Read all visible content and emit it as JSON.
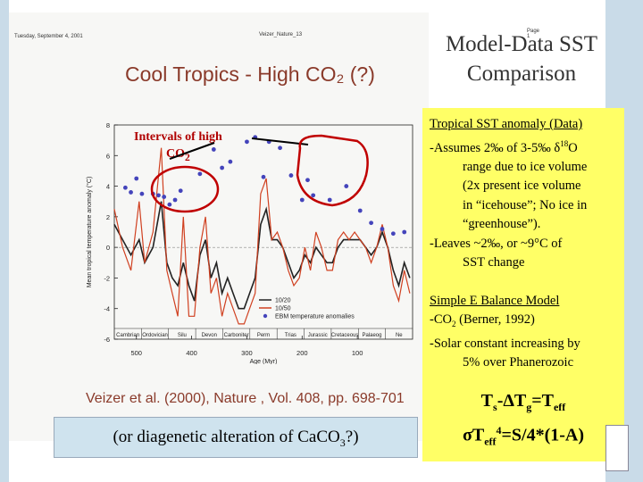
{
  "scan_header": {
    "left": "Tuesday, September 4, 2001",
    "middle": "Veizer_Nature_13",
    "right": "Page 1"
  },
  "main_title": "Cool Tropics - High CO₂ (?)",
  "side_title_line1": "Model-Data SST",
  "side_title_line2": "Comparison",
  "intervals_label_line1": "Intervals of high",
  "intervals_label_line2": "CO",
  "intervals_label_sub": "2",
  "panel": {
    "p1_title": "Tropical SST anomaly (Data)",
    "p1_line1_a": "-Assumes 2‰ of 3-5‰ δ",
    "p1_line1_sup": "18",
    "p1_line1_b": "O",
    "p1_line2": "range due to ice volume",
    "p1_line3": "(2x present ice volume",
    "p1_line4": "in “icehouse”; No ice in",
    "p1_line5": "“greenhouse”).",
    "p1_line6": "-Leaves ~2‰, or ~9°C of",
    "p1_line7": "SST change",
    "p2_title": "Simple E Balance Model",
    "p2_line1_a": "-CO",
    "p2_line1_sub": "2",
    "p2_line1_b": " (Berner, 1992)",
    "p2_line2": "-Solar constant increasing by",
    "p2_line3": "5% over Phanerozoic"
  },
  "equation": {
    "t1": "T",
    "s": "s",
    "minus_delta": "-ΔT",
    "g": "g",
    "eq": "=T",
    "eff": "eff",
    "sigma": "σT",
    "eff2": "eff",
    "four": "4",
    "rhs": "=S/4*(1-A)"
  },
  "citation": "Veizer et al. (2000), Nature , Vol. 408, pp. 698-701",
  "note": {
    "a": "(or diagenetic alteration of CaCO",
    "sub": "3",
    "b": "?)"
  },
  "chart_data": {
    "type": "line",
    "xlabel": "Age (Myr)",
    "ylabel": "Mean tropical temperature anomaly (°C)",
    "xlim": [
      540,
      0
    ],
    "ylim": [
      -6,
      8
    ],
    "x_ticks": [
      500,
      400,
      300,
      200,
      100
    ],
    "y_ticks": [
      -6,
      -4,
      -2,
      0,
      2,
      4,
      6,
      8
    ],
    "periods": [
      "Cambrian",
      "Ordovician",
      "Silu",
      "Devon",
      "Carboniter",
      "Perm",
      "Trias",
      "Jurassic",
      "Cretaceous",
      "Palaeog",
      "Ne"
    ],
    "legend": [
      "10/20",
      "10/50",
      "EBM temperature anomalies"
    ],
    "series": [
      {
        "name": "10/20",
        "color": "#222222",
        "x": [
          540,
          525,
          510,
          495,
          485,
          470,
          455,
          445,
          435,
          425,
          415,
          405,
          395,
          385,
          375,
          365,
          355,
          345,
          335,
          325,
          315,
          305,
          295,
          285,
          275,
          265,
          255,
          245,
          235,
          225,
          215,
          205,
          195,
          185,
          175,
          165,
          155,
          145,
          135,
          125,
          115,
          105,
          95,
          85,
          75,
          65,
          55,
          45,
          35,
          25,
          15,
          5
        ],
        "values": [
          1.5,
          0.5,
          -0.5,
          0.5,
          -1,
          0,
          3,
          -1,
          -2,
          -2.5,
          -1,
          -2.5,
          -3.5,
          -0.5,
          0.5,
          -2,
          -1,
          -3,
          -2,
          -3,
          -4,
          -4,
          -3,
          -2,
          1.5,
          2.5,
          0.5,
          0.5,
          0,
          -1,
          -2,
          -1.5,
          -0.5,
          -1,
          0,
          -0.5,
          -1,
          -1,
          0,
          0.5,
          0.5,
          0.5,
          0.5,
          0,
          -0.5,
          0,
          1,
          0,
          -1.5,
          -2.5,
          -1,
          -2
        ]
      },
      {
        "name": "10/50",
        "color": "#d04020",
        "x": [
          540,
          525,
          510,
          495,
          485,
          470,
          455,
          445,
          435,
          425,
          415,
          405,
          395,
          385,
          375,
          365,
          355,
          345,
          335,
          325,
          315,
          305,
          295,
          285,
          275,
          265,
          255,
          245,
          235,
          225,
          215,
          205,
          195,
          185,
          175,
          165,
          155,
          145,
          135,
          125,
          115,
          105,
          95,
          85,
          75,
          65,
          55,
          45,
          35,
          25,
          15,
          5
        ],
        "values": [
          2.5,
          0,
          -1.5,
          3,
          -1,
          1,
          6.5,
          -1.5,
          -3,
          -4.5,
          2,
          -4.5,
          -4.5,
          0,
          2,
          -3,
          -2,
          -4.5,
          -3,
          -4,
          -5,
          -5,
          -4,
          -3,
          3.5,
          4.5,
          0.5,
          1,
          0,
          -1.5,
          -2.5,
          -2,
          0,
          -1.5,
          1,
          0,
          -1.5,
          -1.5,
          0.5,
          1,
          0.5,
          1,
          0.5,
          0,
          -1,
          0,
          1.5,
          0,
          -2.5,
          -3.5,
          -1.5,
          -3
        ]
      },
      {
        "name": "EBM temperature anomalies",
        "color": "#4444bb",
        "x": [
          520,
          510,
          500,
          490,
          470,
          460,
          450,
          440,
          430,
          420,
          385,
          360,
          345,
          330,
          300,
          285,
          270,
          260,
          240,
          220,
          200,
          190,
          180,
          150,
          120,
          95,
          75,
          55,
          35,
          15
        ],
        "values": [
          3.9,
          3.6,
          4.5,
          3.5,
          3.5,
          3.4,
          3.3,
          2.8,
          3.1,
          3.7,
          4.8,
          6.4,
          5.2,
          5.6,
          6.9,
          7.2,
          4.6,
          6.9,
          6.5,
          4.7,
          3.1,
          4.4,
          3.4,
          3.1,
          4.0,
          2.4,
          1.6,
          1.2,
          0.9,
          1.0
        ]
      }
    ]
  }
}
